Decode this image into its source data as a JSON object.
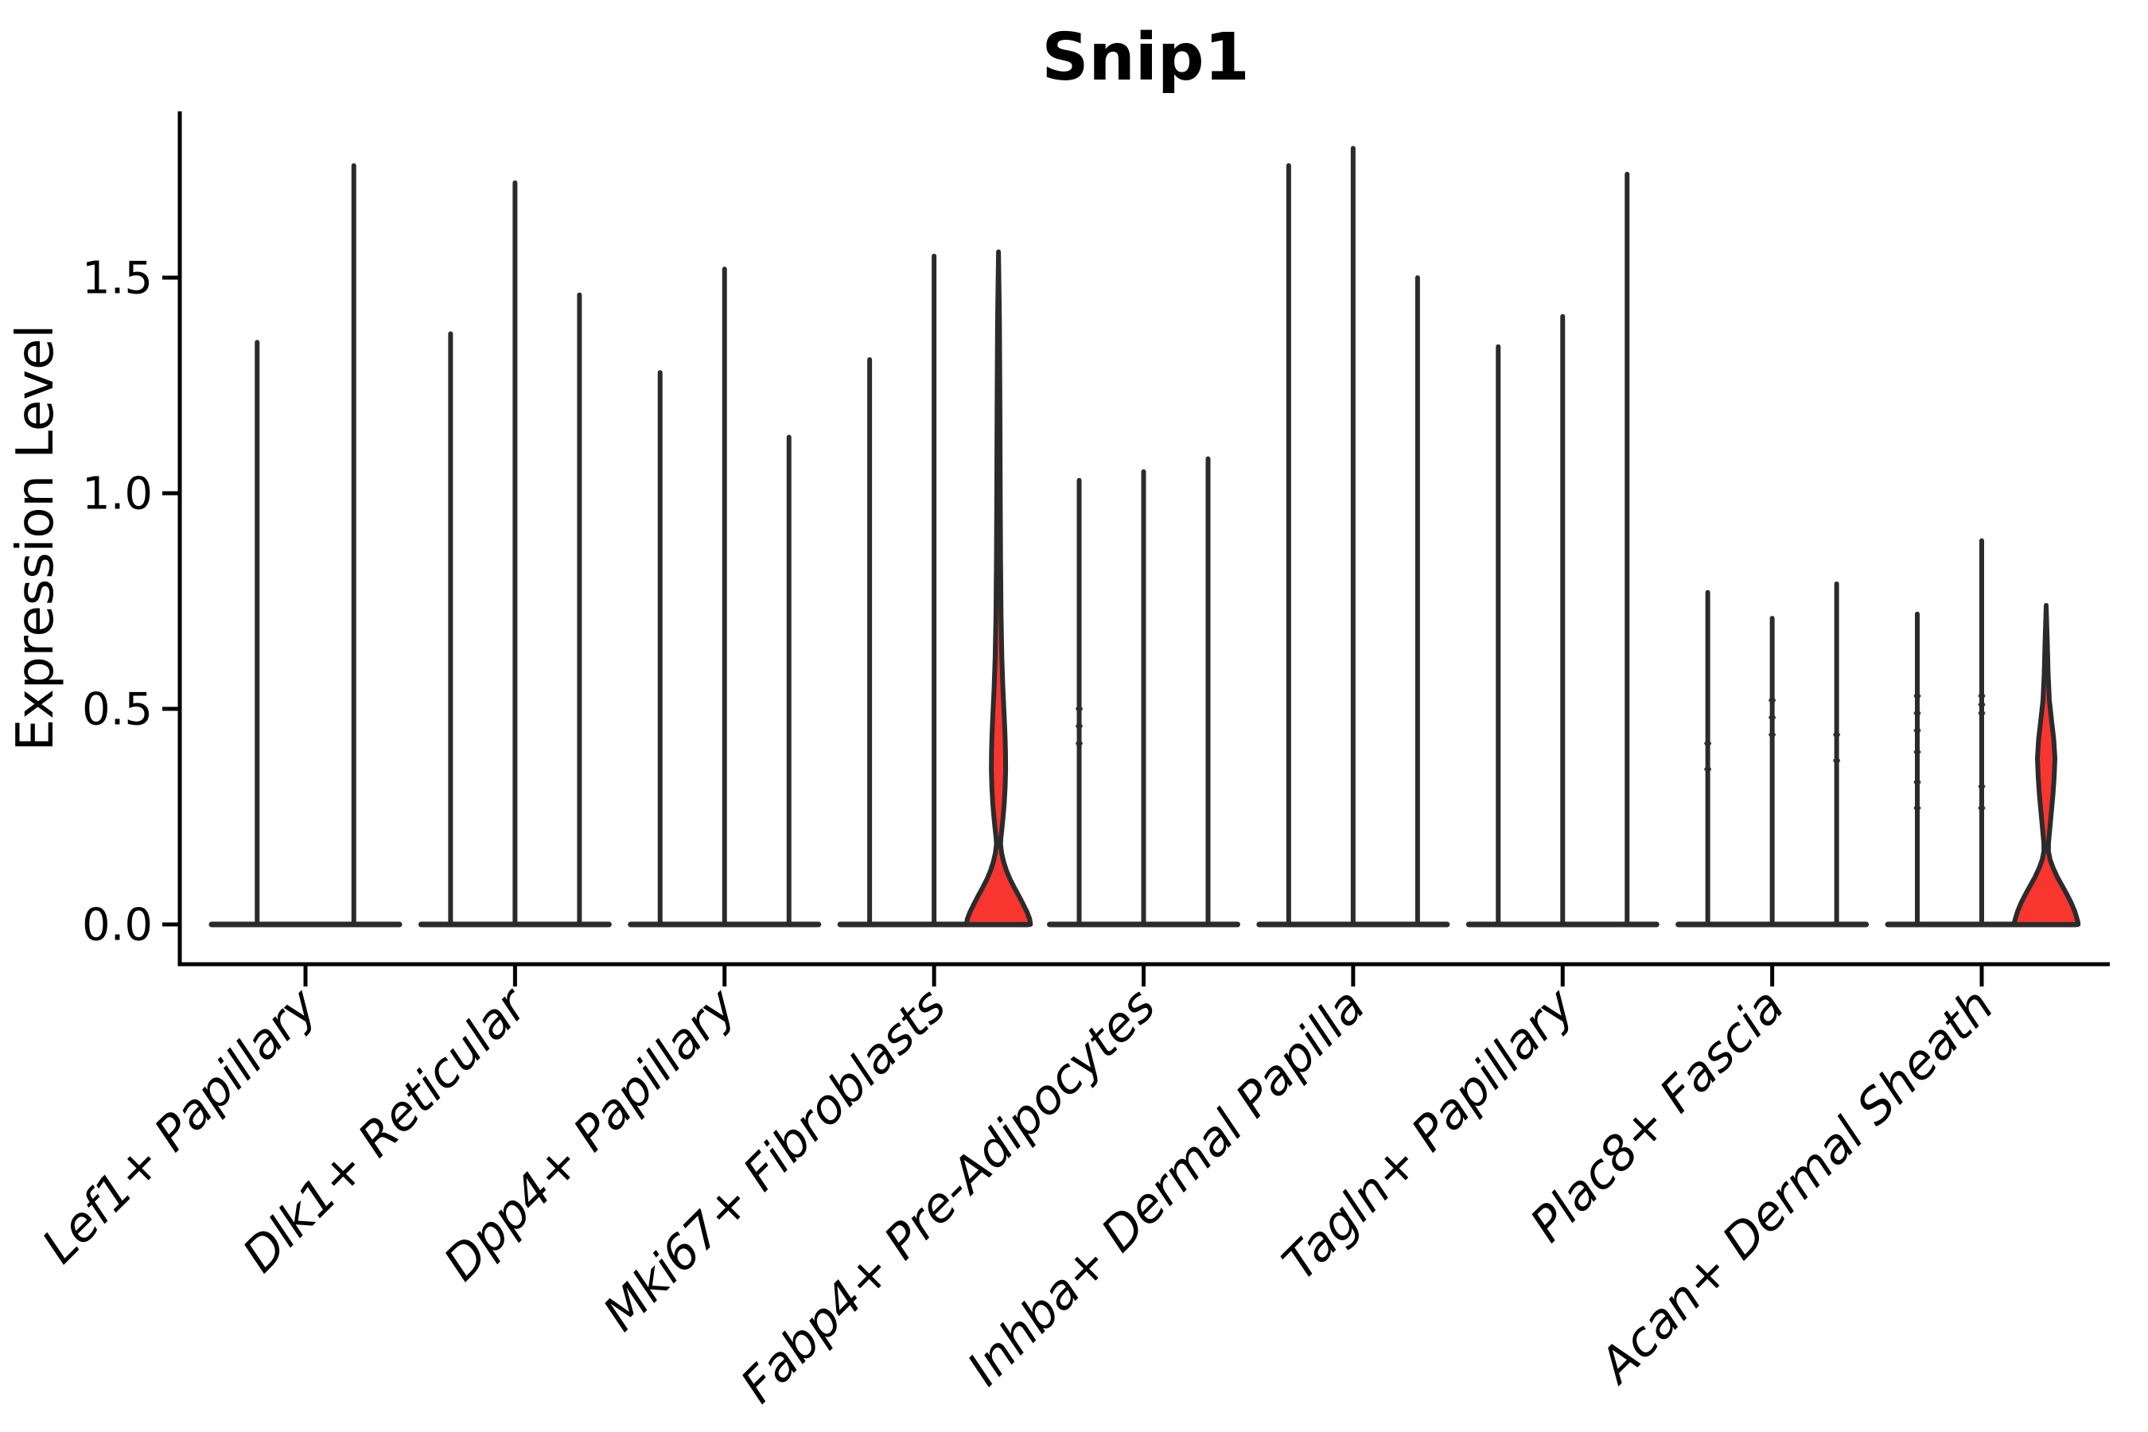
{
  "title": "Snip1",
  "y_axis": {
    "label": "Expression Level",
    "tick_labels": [
      "0.0",
      "0.5",
      "1.0",
      "1.5"
    ],
    "tick_values": [
      0.0,
      0.5,
      1.0,
      1.5
    ]
  },
  "colors": {
    "violin_stroke": "#2b2b2b",
    "axis": "#000000",
    "text": "#000000",
    "highlight_fill": "#f8352e",
    "background": "#ffffff"
  },
  "chart_data": {
    "type": "violin",
    "title": "Snip1",
    "xlabel": "",
    "ylabel": "Expression Level",
    "ylim": [
      0,
      1.91
    ],
    "grid": false,
    "legend": "none",
    "categories": [
      "Lef1+ Papillary",
      "Dlk1+ Reticular",
      "Dpp4+ Papillary",
      "Mki67+ Fibroblasts",
      "Fabp4+ Pre-Adipocytes",
      "Inhba+ Dermal Papilla",
      "Tagln+ Papillary",
      "Plac8+ Fascia",
      "Acan+ Dermal Sheath"
    ],
    "groups": [
      {
        "category": "Lef1+ Papillary",
        "violins": [
          {
            "max": 1.35
          },
          {
            "max": 1.76
          }
        ]
      },
      {
        "category": "Dlk1+ Reticular",
        "violins": [
          {
            "max": 1.37
          },
          {
            "max": 1.72
          },
          {
            "max": 1.46
          }
        ]
      },
      {
        "category": "Dpp4+ Papillary",
        "violins": [
          {
            "max": 1.28
          },
          {
            "max": 1.52
          },
          {
            "max": 1.13
          }
        ]
      },
      {
        "category": "Mki67+ Fibroblasts",
        "violins": [
          {
            "max": 1.31
          },
          {
            "max": 1.55
          },
          {
            "max": 1.56,
            "highlight": true,
            "profile": "mki67_red"
          }
        ]
      },
      {
        "category": "Fabp4+ Pre-Adipocytes",
        "violins": [
          {
            "max": 1.03,
            "points": [
              0.5,
              0.46,
              0.42
            ]
          },
          {
            "max": 1.05
          },
          {
            "max": 1.08
          }
        ]
      },
      {
        "category": "Inhba+ Dermal Papilla",
        "violins": [
          {
            "max": 1.76
          },
          {
            "max": 1.8
          },
          {
            "max": 1.5
          }
        ]
      },
      {
        "category": "Tagln+ Papillary",
        "violins": [
          {
            "max": 1.34
          },
          {
            "max": 1.41
          },
          {
            "max": 1.74
          }
        ]
      },
      {
        "category": "Plac8+ Fascia",
        "violins": [
          {
            "max": 0.77,
            "points": [
              0.42,
              0.36
            ]
          },
          {
            "max": 0.71,
            "points": [
              0.52,
              0.48,
              0.44
            ]
          },
          {
            "max": 0.79,
            "points": [
              0.44,
              0.38
            ]
          }
        ]
      },
      {
        "category": "Acan+ Dermal Sheath",
        "violins": [
          {
            "max": 0.72,
            "points": [
              0.53,
              0.49,
              0.45,
              0.4,
              0.33,
              0.27
            ]
          },
          {
            "max": 0.89,
            "points": [
              0.53,
              0.51,
              0.49,
              0.32,
              0.27
            ]
          },
          {
            "max": 0.74,
            "highlight": true,
            "profile": "acan_red"
          }
        ]
      }
    ],
    "highlight_profiles": {
      "mki67_red": [
        [
          1.56,
          0
        ],
        [
          1.4,
          1.2
        ],
        [
          1.2,
          1.8
        ],
        [
          1.0,
          2.2
        ],
        [
          0.85,
          2.6
        ],
        [
          0.72,
          3.2
        ],
        [
          0.62,
          4.2
        ],
        [
          0.55,
          5.5
        ],
        [
          0.49,
          7.0
        ],
        [
          0.44,
          8.2
        ],
        [
          0.4,
          8.8
        ],
        [
          0.36,
          9.0
        ],
        [
          0.32,
          8.4
        ],
        [
          0.28,
          7.2
        ],
        [
          0.25,
          5.8
        ],
        [
          0.22,
          4.2
        ],
        [
          0.2,
          3.0
        ],
        [
          0.185,
          2.6
        ],
        [
          0.165,
          4.0
        ],
        [
          0.145,
          6.5
        ],
        [
          0.125,
          10.0
        ],
        [
          0.105,
          14.5
        ],
        [
          0.085,
          20.0
        ],
        [
          0.065,
          26.0
        ],
        [
          0.045,
          31.5
        ],
        [
          0.028,
          36.0
        ],
        [
          0.012,
          39.3
        ],
        [
          0.0,
          40.2
        ]
      ],
      "acan_red": [
        [
          0.74,
          0
        ],
        [
          0.65,
          1.5
        ],
        [
          0.58,
          2.5
        ],
        [
          0.52,
          4.0
        ],
        [
          0.47,
          7.0
        ],
        [
          0.43,
          9.5
        ],
        [
          0.385,
          11.0
        ],
        [
          0.34,
          10.0
        ],
        [
          0.3,
          8.5
        ],
        [
          0.26,
          6.5
        ],
        [
          0.22,
          4.5
        ],
        [
          0.19,
          3.0
        ],
        [
          0.17,
          2.8
        ],
        [
          0.15,
          5.0
        ],
        [
          0.13,
          9.0
        ],
        [
          0.11,
          14.0
        ],
        [
          0.09,
          20.0
        ],
        [
          0.07,
          26.0
        ],
        [
          0.05,
          31.5
        ],
        [
          0.03,
          36.0
        ],
        [
          0.015,
          38.5
        ],
        [
          0.005,
          40.0
        ],
        [
          0.0,
          40.2
        ]
      ]
    }
  }
}
